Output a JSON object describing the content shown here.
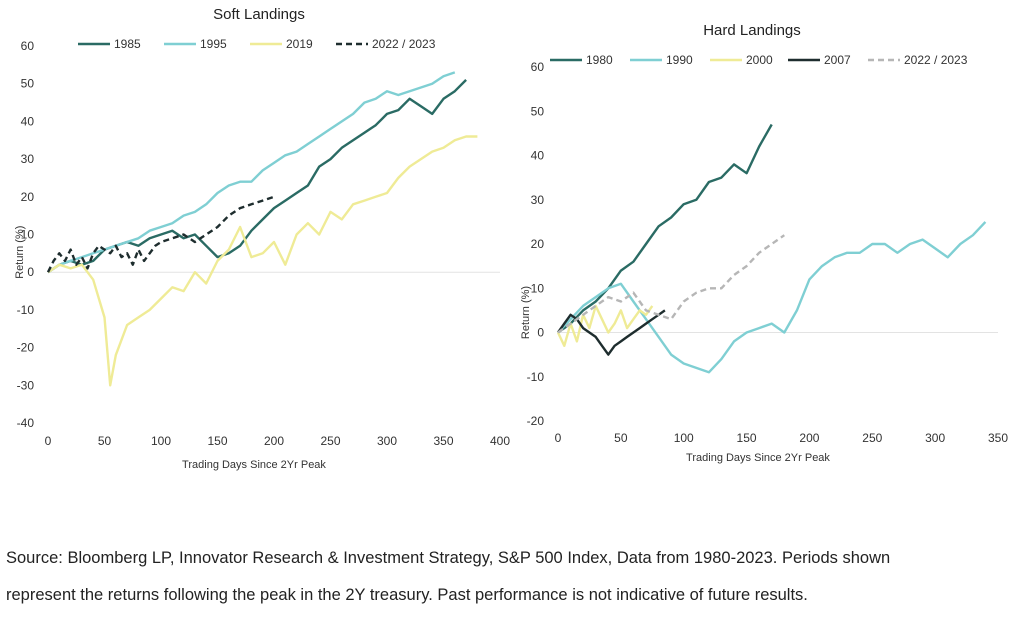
{
  "chart_data": [
    {
      "type": "line",
      "title": "Soft Landings",
      "xlabel": "Trading Days Since 2Yr Peak",
      "ylabel": "Return (%)",
      "xlim": [
        0,
        400
      ],
      "ylim": [
        -40,
        60
      ],
      "xticks": [
        0,
        50,
        100,
        150,
        200,
        250,
        300,
        350,
        400
      ],
      "yticks": [
        -40,
        -30,
        -20,
        -10,
        0,
        10,
        20,
        30,
        40,
        50,
        60
      ],
      "legend_position": "top",
      "series": [
        {
          "name": "1985",
          "color": "#2a6b64",
          "style": "solid",
          "x": [
            0,
            10,
            20,
            30,
            40,
            50,
            60,
            70,
            80,
            90,
            100,
            110,
            120,
            130,
            140,
            150,
            160,
            170,
            180,
            190,
            200,
            210,
            220,
            230,
            240,
            250,
            260,
            270,
            280,
            290,
            300,
            310,
            320,
            330,
            340,
            350,
            360,
            370
          ],
          "y": [
            0,
            2,
            3,
            2,
            3,
            6,
            7,
            8,
            7,
            9,
            10,
            11,
            9,
            10,
            7,
            4,
            5,
            7,
            11,
            14,
            17,
            19,
            21,
            23,
            28,
            30,
            33,
            35,
            37,
            39,
            42,
            43,
            46,
            44,
            42,
            46,
            48,
            51
          ]
        },
        {
          "name": "1995",
          "color": "#7fcfd3",
          "style": "solid",
          "x": [
            0,
            10,
            20,
            30,
            40,
            50,
            60,
            70,
            80,
            90,
            100,
            110,
            120,
            130,
            140,
            150,
            160,
            170,
            180,
            190,
            200,
            210,
            220,
            230,
            240,
            250,
            260,
            270,
            280,
            290,
            300,
            310,
            320,
            330,
            340,
            350,
            360
          ],
          "y": [
            0,
            2,
            3,
            4,
            5,
            6,
            7,
            8,
            9,
            11,
            12,
            13,
            15,
            16,
            18,
            21,
            23,
            24,
            24,
            27,
            29,
            31,
            32,
            34,
            36,
            38,
            40,
            42,
            45,
            46,
            48,
            47,
            48,
            49,
            50,
            52,
            53
          ]
        },
        {
          "name": "2019",
          "color": "#efeb96",
          "style": "solid",
          "x": [
            0,
            10,
            20,
            30,
            40,
            50,
            55,
            60,
            70,
            80,
            90,
            100,
            110,
            120,
            130,
            140,
            150,
            160,
            170,
            180,
            190,
            200,
            210,
            220,
            230,
            240,
            250,
            260,
            270,
            280,
            290,
            300,
            310,
            320,
            330,
            340,
            350,
            360,
            370,
            380
          ],
          "y": [
            0,
            2,
            1,
            2,
            -2,
            -12,
            -30,
            -22,
            -14,
            -12,
            -10,
            -7,
            -4,
            -5,
            0,
            -3,
            3,
            6,
            12,
            4,
            5,
            8,
            2,
            10,
            13,
            10,
            16,
            14,
            18,
            19,
            20,
            21,
            25,
            28,
            30,
            32,
            33,
            35,
            36,
            36
          ]
        },
        {
          "name": "2022 / 2023",
          "color": "#1e2d2e",
          "style": "dashed",
          "x": [
            0,
            5,
            10,
            15,
            20,
            25,
            30,
            35,
            40,
            45,
            50,
            55,
            60,
            65,
            70,
            75,
            80,
            85,
            90,
            95,
            100,
            110,
            120,
            130,
            140,
            150,
            160,
            170,
            180,
            190,
            200
          ],
          "y": [
            0,
            3,
            5,
            3,
            6,
            2,
            4,
            1,
            5,
            7,
            6,
            5,
            7,
            4,
            5,
            2,
            6,
            3,
            5,
            7,
            8,
            9,
            10,
            8,
            10,
            12,
            15,
            17,
            18,
            19,
            20
          ]
        }
      ]
    },
    {
      "type": "line",
      "title": "Hard Landings",
      "xlabel": "Trading Days Since 2Yr Peak",
      "ylabel": "Return (%)",
      "xlim": [
        0,
        350
      ],
      "ylim": [
        -20,
        60
      ],
      "xticks": [
        0,
        50,
        100,
        150,
        200,
        250,
        300,
        350
      ],
      "yticks": [
        -20,
        -10,
        0,
        10,
        20,
        30,
        40,
        50,
        60
      ],
      "legend_position": "top",
      "series": [
        {
          "name": "1980",
          "color": "#2a6b64",
          "style": "solid",
          "x": [
            0,
            10,
            20,
            30,
            40,
            50,
            60,
            70,
            80,
            90,
            100,
            110,
            120,
            130,
            140,
            150,
            160,
            170
          ],
          "y": [
            0,
            2,
            5,
            7,
            10,
            14,
            16,
            20,
            24,
            26,
            29,
            30,
            34,
            35,
            38,
            36,
            42,
            47
          ]
        },
        {
          "name": "1990",
          "color": "#7fcfd3",
          "style": "solid",
          "x": [
            0,
            10,
            20,
            30,
            40,
            50,
            60,
            70,
            80,
            90,
            100,
            110,
            120,
            130,
            140,
            150,
            160,
            170,
            180,
            190,
            200,
            210,
            220,
            230,
            240,
            250,
            260,
            270,
            280,
            290,
            300,
            310,
            320,
            330,
            340
          ],
          "y": [
            0,
            3,
            6,
            8,
            10,
            11,
            7,
            3,
            -1,
            -5,
            -7,
            -8,
            -9,
            -6,
            -2,
            0,
            1,
            2,
            0,
            5,
            12,
            15,
            17,
            18,
            18,
            20,
            20,
            18,
            20,
            21,
            19,
            17,
            20,
            22,
            25
          ]
        },
        {
          "name": "2000",
          "color": "#efeb96",
          "style": "solid",
          "x": [
            0,
            5,
            10,
            15,
            20,
            25,
            30,
            35,
            40,
            45,
            50,
            55,
            60,
            65,
            70,
            75
          ],
          "y": [
            0,
            -3,
            2,
            -2,
            4,
            1,
            6,
            3,
            0,
            2,
            5,
            1,
            3,
            5,
            4,
            6
          ]
        },
        {
          "name": "2007",
          "color": "#1e2d2e",
          "style": "solid",
          "x": [
            0,
            5,
            10,
            15,
            20,
            25,
            30,
            35,
            40,
            45,
            50,
            55,
            60,
            65,
            70,
            75,
            80,
            85
          ],
          "y": [
            0,
            2,
            4,
            3,
            1,
            0,
            -1,
            -3,
            -5,
            -3,
            -2,
            -1,
            0,
            1,
            2,
            3,
            4,
            5
          ]
        },
        {
          "name": "2022 / 2023",
          "color": "#b6b6b6",
          "style": "dashed",
          "x": [
            0,
            10,
            20,
            30,
            40,
            50,
            60,
            70,
            80,
            90,
            100,
            110,
            120,
            130,
            140,
            150,
            160,
            170,
            180
          ],
          "y": [
            0,
            2,
            4,
            6,
            8,
            7,
            9,
            5,
            4,
            3,
            7,
            9,
            10,
            10,
            13,
            15,
            18,
            20,
            22
          ]
        }
      ]
    }
  ],
  "footer": {
    "source_line1": "Source: Bloomberg LP, Innovator Research & Investment Strategy, S&P 500 Index, Data from 1980-2023. Periods shown",
    "source_line2": "represent the returns following the peak in the 2Y treasury. Past performance is not indicative of future results."
  }
}
